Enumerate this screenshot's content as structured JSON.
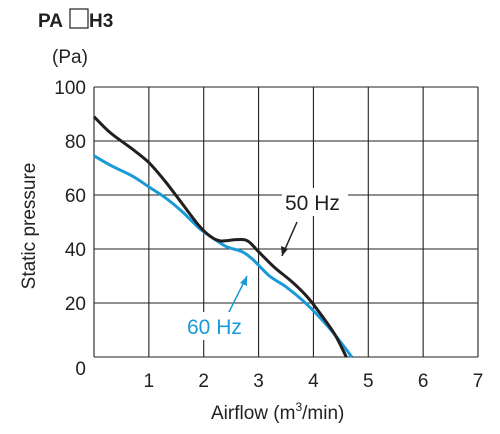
{
  "chart_data": {
    "type": "line",
    "title_prefix": "PA",
    "title_suffix": "H3",
    "unit_label": "(Pa)",
    "xlabel": "Airflow (m",
    "xlabel_sup": "3",
    "xlabel_end": "/min)",
    "ylabel": "Static pressure",
    "xlim": [
      0,
      7
    ],
    "ylim": [
      0,
      100
    ],
    "x_ticks": [
      "1",
      "2",
      "3",
      "4",
      "5",
      "6",
      "7"
    ],
    "y_ticks": [
      "0",
      "20",
      "40",
      "60",
      "80",
      "100"
    ],
    "grid": true,
    "series": [
      {
        "name": "50 Hz",
        "color": "#231f20",
        "points": [
          [
            0,
            89
          ],
          [
            0.3,
            83
          ],
          [
            0.7,
            77
          ],
          [
            1.0,
            72
          ],
          [
            1.3,
            65
          ],
          [
            1.6,
            57
          ],
          [
            1.9,
            49
          ],
          [
            2.1,
            45
          ],
          [
            2.3,
            43
          ],
          [
            2.6,
            43.5
          ],
          [
            2.8,
            43
          ],
          [
            3.0,
            39
          ],
          [
            3.3,
            33
          ],
          [
            3.6,
            28
          ],
          [
            3.9,
            22
          ],
          [
            4.2,
            14
          ],
          [
            4.4,
            8
          ],
          [
            4.6,
            0
          ]
        ]
      },
      {
        "name": "60 Hz",
        "color": "#1a9ad6",
        "points": [
          [
            0,
            74.5
          ],
          [
            0.3,
            71
          ],
          [
            0.7,
            67
          ],
          [
            1.0,
            63
          ],
          [
            1.3,
            59
          ],
          [
            1.6,
            54
          ],
          [
            1.9,
            48
          ],
          [
            2.1,
            45
          ],
          [
            2.4,
            41
          ],
          [
            2.7,
            39
          ],
          [
            2.9,
            36
          ],
          [
            3.2,
            30
          ],
          [
            3.5,
            26
          ],
          [
            3.8,
            21
          ],
          [
            4.1,
            15
          ],
          [
            4.4,
            8
          ],
          [
            4.7,
            0
          ]
        ]
      }
    ]
  }
}
